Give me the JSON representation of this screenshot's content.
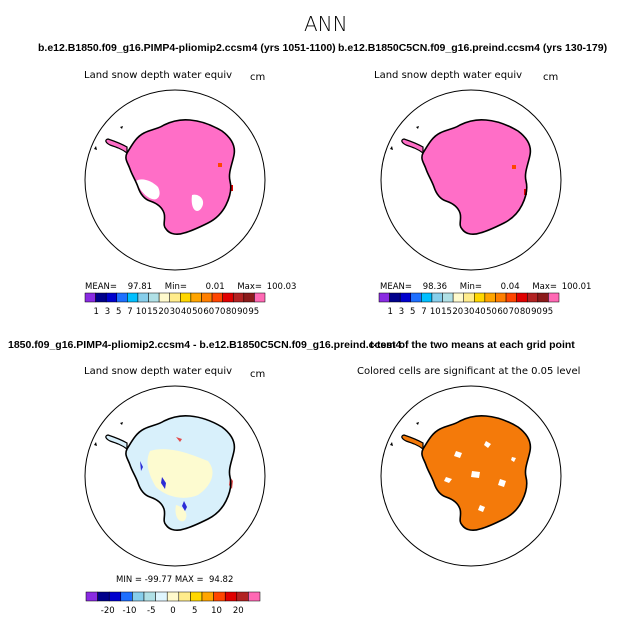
{
  "page": {
    "title": "ANN"
  },
  "chart_data": [
    {
      "type": "heatmap",
      "projection": "south polar stereographic",
      "title": "b.e12.B1850.f09_g16.PIMP4-pliomip2.ccsm4 (yrs 1051-1100)",
      "variable": "Land snow depth water equiv",
      "units": "cm",
      "stats": {
        "mean_label": "MEAN=",
        "mean": "97.81",
        "min_label": "Min=",
        "min": "0.01",
        "max_label": "Max=",
        "max": "100.03"
      },
      "colorbar": {
        "colors": [
          "#8a2be2",
          "#00008b",
          "#0000cd",
          "#1e6fff",
          "#00bfff",
          "#87ceeb",
          "#b0e0e6",
          "#fffacd",
          "#ffec8b",
          "#ffd700",
          "#ffa500",
          "#ff7f00",
          "#ff4500",
          "#e00000",
          "#b22222",
          "#8b1a1a",
          "#ff69b4"
        ],
        "tick_labels": [
          "1",
          "3",
          "5",
          "7",
          "10",
          "15",
          "20",
          "30",
          "40",
          "50",
          "60",
          "70",
          "80",
          "90",
          "95"
        ]
      },
      "dominant_color": "#ff6ec7"
    },
    {
      "type": "heatmap",
      "projection": "south polar stereographic",
      "title": "b.e12.B1850C5CN.f09_g16.preind.ccsm4 (yrs 130-179)",
      "variable": "Land snow depth water equiv",
      "units": "cm",
      "stats": {
        "mean_label": "MEAN=",
        "mean": "98.36",
        "min_label": "Min=",
        "min": "0.04",
        "max_label": "Max=",
        "max": "100.01"
      },
      "colorbar": {
        "colors": [
          "#8a2be2",
          "#00008b",
          "#0000cd",
          "#1e6fff",
          "#00bfff",
          "#87ceeb",
          "#b0e0e6",
          "#fffacd",
          "#ffec8b",
          "#ffd700",
          "#ffa500",
          "#ff7f00",
          "#ff4500",
          "#e00000",
          "#b22222",
          "#8b1a1a",
          "#ff69b4"
        ],
        "tick_labels": [
          "1",
          "3",
          "5",
          "7",
          "10",
          "15",
          "20",
          "30",
          "40",
          "50",
          "60",
          "70",
          "80",
          "90",
          "95"
        ]
      },
      "dominant_color": "#ff6ec7"
    },
    {
      "type": "heatmap",
      "projection": "south polar stereographic",
      "title": "1850.f09_g16.PIMP4-pliomip2.ccsm4 - b.e12.B1850C5CN.f09_g16.preind.ccsm4",
      "variable": "Land snow depth water equiv",
      "units": "cm",
      "stats": {
        "text": "MIN = -99.77 MAX =  94.82"
      },
      "colorbar": {
        "colors": [
          "#8a2be2",
          "#00008b",
          "#0000cd",
          "#1e6fff",
          "#87ceeb",
          "#b0e0e6",
          "#e0f6ff",
          "#fffacd",
          "#ffec8b",
          "#ffd700",
          "#ffa500",
          "#ff4500",
          "#e00000",
          "#b22222",
          "#ff69b4"
        ],
        "tick_labels": [
          "-20",
          "-10",
          "-5",
          "0",
          "5",
          "10",
          "20"
        ]
      },
      "dominant_colors": [
        "#d8f0fb",
        "#fdfbd0"
      ]
    },
    {
      "type": "heatmap",
      "projection": "south polar stereographic",
      "title": "t-test of the two means at each grid point",
      "subtitle": "Colored cells are significant at the 0.05 level",
      "dominant_color": "#f47a0a"
    }
  ]
}
